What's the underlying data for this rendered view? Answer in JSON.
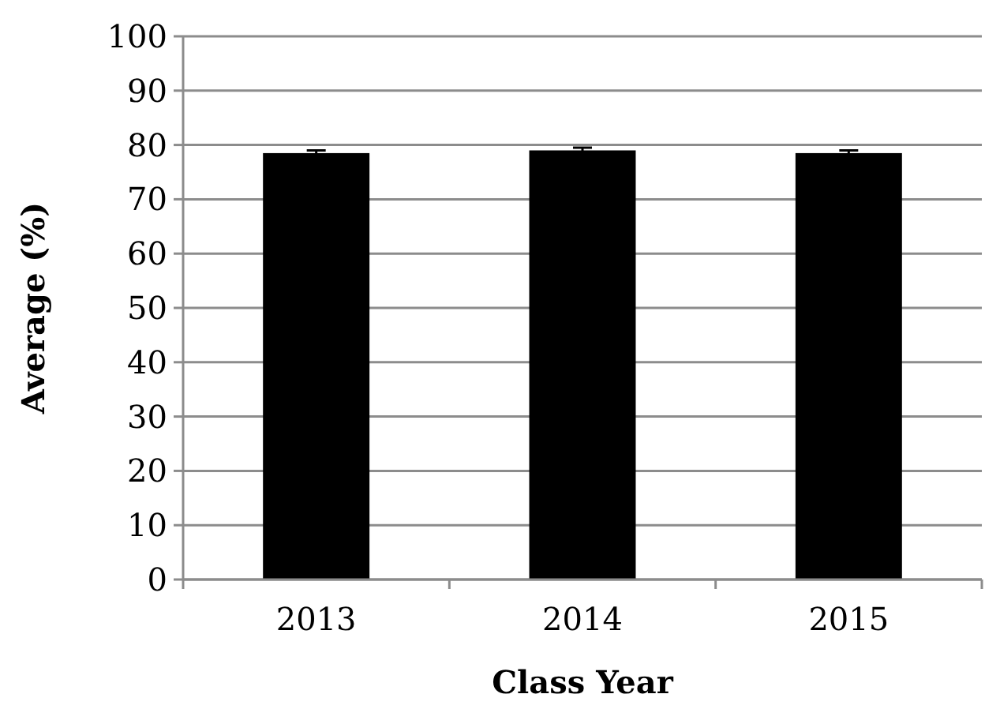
{
  "chart_data": {
    "type": "bar",
    "xlabel": "Class Year",
    "ylabel": "Average (%)",
    "categories": [
      "2013",
      "2014",
      "2015"
    ],
    "values": [
      78.5,
      79,
      78.5
    ],
    "errors": [
      0.5,
      0.5,
      0.5
    ],
    "color": "#000000",
    "ylim": [
      0,
      100
    ],
    "yticks": [
      0,
      10,
      20,
      30,
      40,
      50,
      60,
      70,
      80,
      90,
      100
    ],
    "grid": "y"
  }
}
